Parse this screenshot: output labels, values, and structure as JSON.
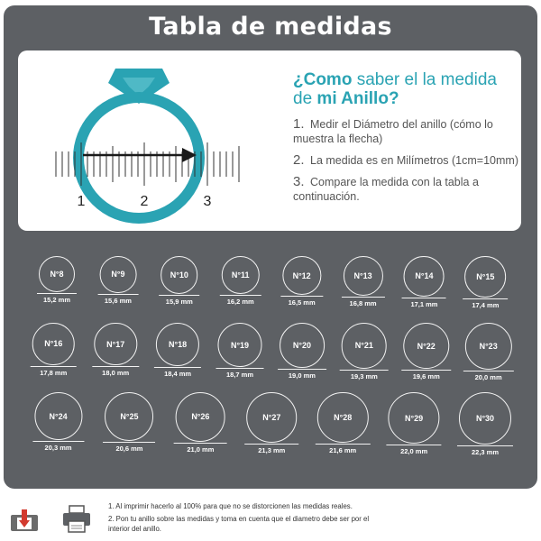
{
  "page": {
    "title": "Tabla de medidas",
    "heading": {
      "part1": "¿Como",
      "part2": " saber el la medida de ",
      "part3": "mi Anillo?"
    },
    "steps": [
      {
        "num": "1.",
        "text": "Medir el Diámetro del anillo (cómo lo muestra la flecha)"
      },
      {
        "num": "2.",
        "text": "La medida es en Milímetros (1cm=10mm)"
      },
      {
        "num": "3.",
        "text": "Compare la medida con la tabla a continuación."
      }
    ],
    "ruler_labels": [
      "1",
      "2",
      "3"
    ],
    "rings": [
      {
        "label": "N°8",
        "mm": "15,2 mm"
      },
      {
        "label": "N°9",
        "mm": "15,6 mm"
      },
      {
        "label": "N°10",
        "mm": "15,9 mm"
      },
      {
        "label": "N°11",
        "mm": "16,2 mm"
      },
      {
        "label": "N°12",
        "mm": "16,5 mm"
      },
      {
        "label": "N°13",
        "mm": "16,8 mm"
      },
      {
        "label": "N°14",
        "mm": "17,1 mm"
      },
      {
        "label": "N°15",
        "mm": "17,4 mm"
      },
      {
        "label": "N°16",
        "mm": "17,8 mm"
      },
      {
        "label": "N°17",
        "mm": "18,0 mm"
      },
      {
        "label": "N°18",
        "mm": "18,4 mm"
      },
      {
        "label": "N°19",
        "mm": "18,7 mm"
      },
      {
        "label": "N°20",
        "mm": "19,0 mm"
      },
      {
        "label": "N°21",
        "mm": "19,3 mm"
      },
      {
        "label": "N°22",
        "mm": "19,6 mm"
      },
      {
        "label": "N°23",
        "mm": "20,0 mm"
      },
      {
        "label": "N°24",
        "mm": "20,3 mm"
      },
      {
        "label": "N°25",
        "mm": "20,6 mm"
      },
      {
        "label": "N°26",
        "mm": "21,0 mm"
      },
      {
        "label": "N°27",
        "mm": "21,3 mm"
      },
      {
        "label": "N°28",
        "mm": "21,6 mm"
      },
      {
        "label": "N°29",
        "mm": "22,0 mm"
      },
      {
        "label": "N°30",
        "mm": "22,3 mm"
      }
    ],
    "notes": [
      "1. Al imprimir hacerlo al 100% para que no se distorcionen las medidas reales.",
      "2. Pon tu anillo sobre las medidas y toma en cuenta que el diametro debe ser por el interior del anillo."
    ],
    "icons": {
      "pdf": "pdf-icon",
      "printer": "printer-icon"
    },
    "colors": {
      "panel": "#5d6064",
      "accent": "#2aa3b3",
      "text": "#555555"
    }
  }
}
